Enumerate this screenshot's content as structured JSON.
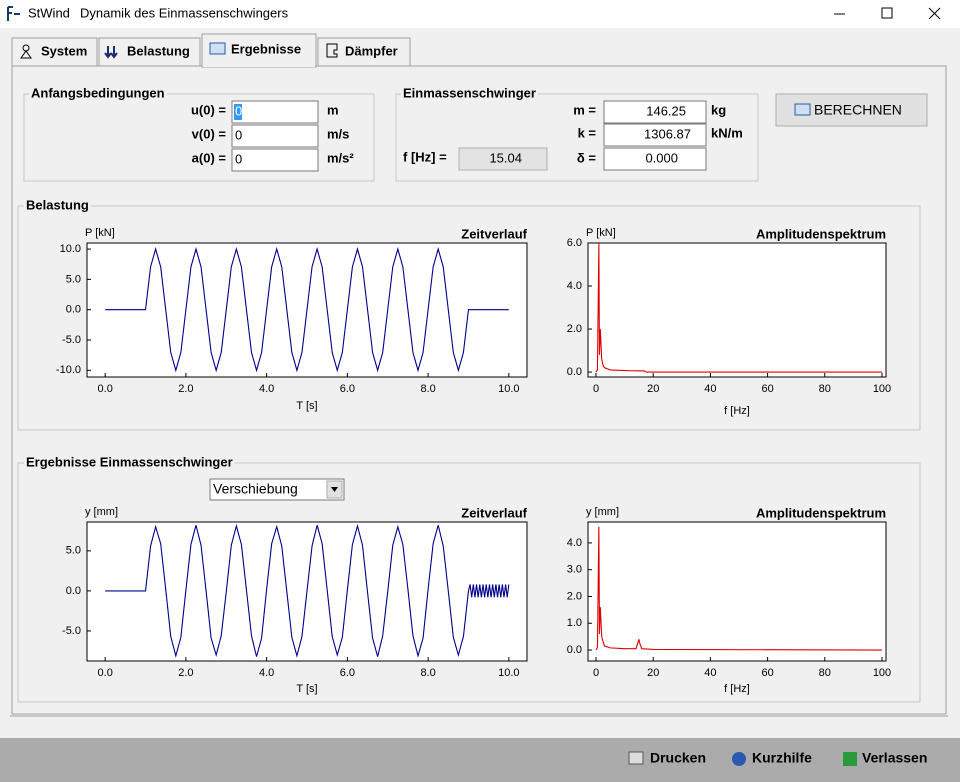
{
  "window": {
    "app": "StWind",
    "title": "Dynamik des Einmassenschwingers"
  },
  "tabs": [
    "System",
    "Belastung",
    "Ergebnisse",
    "Dämpfer"
  ],
  "initial_conditions": {
    "title": "Anfangsbedingungen",
    "rows": [
      {
        "label": "u(0) =",
        "value": "0",
        "unit": "m"
      },
      {
        "label": "v(0) =",
        "value": "0",
        "unit": "m/s"
      },
      {
        "label": "a(0) =",
        "value": "0",
        "unit": "m/s²"
      }
    ]
  },
  "oscillator": {
    "title": "Einmassenschwinger",
    "rows": [
      {
        "label": "m =",
        "value": "146.25",
        "unit": "kg"
      },
      {
        "label": "k =",
        "value": "1306.87",
        "unit": "kN/m"
      },
      {
        "label": "δ =",
        "value": "0.000"
      }
    ],
    "frequency": {
      "label": "f [Hz] =",
      "value": "15.04"
    }
  },
  "compute_button": "BERECHNEN",
  "load_group": "Belastung",
  "results_group": "Ergebnisse Einmassenschwinger",
  "result_select": "Verschiebung",
  "footer": [
    "Drucken",
    "Kurzhilfe",
    "Verlassen"
  ],
  "chart_data": [
    {
      "type": "line",
      "title": "Zeitverlauf",
      "x_label": "T [s]",
      "y_label": "P [kN]",
      "x": [
        0,
        1,
        1.125,
        1.25,
        1.375,
        1.5,
        1.625,
        1.75,
        1.875,
        2,
        2.125,
        2.25,
        2.375,
        2.5,
        2.625,
        2.75,
        2.875,
        3,
        3.125,
        3.25,
        3.375,
        3.5,
        3.625,
        3.75,
        3.875,
        4,
        4.125,
        4.25,
        4.375,
        4.5,
        4.625,
        4.75,
        4.875,
        5,
        5.125,
        5.25,
        5.375,
        5.5,
        5.625,
        5.75,
        5.875,
        6,
        6.125,
        6.25,
        6.375,
        6.5,
        6.625,
        6.75,
        6.875,
        7,
        7.125,
        7.25,
        7.375,
        7.5,
        7.625,
        7.75,
        7.875,
        8,
        8.125,
        8.25,
        8.375,
        8.5,
        8.625,
        8.75,
        8.875,
        9,
        10
      ],
      "series": [
        {
          "color": "#00008b",
          "values": [
            0,
            0,
            7.07,
            10,
            7.07,
            0,
            -7.07,
            -10,
            -7.07,
            0,
            7.07,
            10,
            7.07,
            0,
            -7.07,
            -10,
            -7.07,
            0,
            7.07,
            10,
            7.07,
            0,
            -7.07,
            -10,
            -7.07,
            0,
            7.07,
            10,
            7.07,
            0,
            -7.07,
            -10,
            -7.07,
            0,
            7.07,
            10,
            7.07,
            0,
            -7.07,
            -10,
            -7.07,
            0,
            7.07,
            10,
            7.07,
            0,
            -7.07,
            -10,
            -7.07,
            0,
            7.07,
            10,
            7.07,
            0,
            -7.07,
            -10,
            -7.07,
            0,
            7.07,
            10,
            7.07,
            0,
            -7.07,
            -10,
            -7.07,
            0,
            0
          ]
        }
      ],
      "xlim": [
        -0.45,
        10.45
      ],
      "ylim": [
        -11.1,
        11.0
      ],
      "xticks": [
        {
          "value": 0,
          "label": "0.0"
        },
        {
          "value": 2,
          "label": "2.0"
        },
        {
          "value": 4,
          "label": "4.0"
        },
        {
          "value": 6,
          "label": "6.0"
        },
        {
          "value": 8,
          "label": "8.0"
        },
        {
          "value": 10,
          "label": "10.0"
        }
      ],
      "yticks": [
        {
          "value": -10,
          "label": "-10.0"
        },
        {
          "value": -5,
          "label": "-5.0"
        },
        {
          "value": 0,
          "label": "0.0"
        },
        {
          "value": 5,
          "label": "5.0"
        },
        {
          "value": 10,
          "label": "10.0"
        }
      ]
    },
    {
      "type": "line",
      "title": "Amplitudenspektrum",
      "x_label": "f [Hz]",
      "y_label": "P [kN]",
      "x": [
        0,
        0.5,
        1,
        1.2,
        1.5,
        2,
        2.5,
        3,
        5,
        8,
        12,
        17,
        17.5,
        100
      ],
      "series": [
        {
          "color": "#e00000",
          "values": [
            0,
            0.1,
            6.0,
            0.8,
            2.0,
            0.6,
            0.3,
            0.2,
            0.1,
            0.08,
            0.06,
            0.05,
            0,
            0
          ]
        }
      ],
      "xlim": [
        -2.8,
        101.4
      ],
      "ylim": [
        -0.23,
        6.0
      ],
      "xticks": [
        0,
        20,
        40,
        60,
        80,
        100
      ],
      "yticks": [
        {
          "value": 0,
          "label": "0.0"
        },
        {
          "value": 2,
          "label": "2.0"
        },
        {
          "value": 4,
          "label": "4.0"
        },
        {
          "value": 6,
          "label": "6.0"
        }
      ]
    },
    {
      "type": "line",
      "title": "Zeitverlauf",
      "x_label": "T [s]",
      "y_label": "y [mm]",
      "x": [
        0,
        1,
        1.125,
        1.25,
        1.375,
        1.5,
        1.625,
        1.75,
        1.875,
        2,
        2.125,
        2.25,
        2.375,
        2.5,
        2.625,
        2.75,
        2.875,
        3,
        3.125,
        3.25,
        3.375,
        3.5,
        3.625,
        3.75,
        3.875,
        4,
        4.125,
        4.25,
        4.375,
        4.5,
        4.625,
        4.75,
        4.875,
        5,
        5.125,
        5.25,
        5.375,
        5.5,
        5.625,
        5.75,
        5.875,
        6,
        6.125,
        6.25,
        6.375,
        6.5,
        6.625,
        6.75,
        6.875,
        7,
        7.125,
        7.25,
        7.375,
        7.5,
        7.625,
        7.75,
        7.875,
        8,
        8.125,
        8.25,
        8.375,
        8.5,
        8.625,
        8.75,
        8.875,
        9,
        9.04,
        9.08,
        9.12,
        9.16,
        9.2,
        9.24,
        9.28,
        9.32,
        9.36,
        9.4,
        9.44,
        9.48,
        9.52,
        9.56,
        9.6,
        9.64,
        9.68,
        9.72,
        9.76,
        9.8,
        9.84,
        9.88,
        9.92,
        9.96,
        10
      ],
      "series": [
        {
          "color": "#00008b",
          "values": [
            0,
            0,
            5.6,
            8.0,
            5.9,
            0.2,
            -5.7,
            -8.1,
            -5.8,
            0.1,
            5.8,
            8.2,
            5.7,
            0,
            -5.9,
            -8.0,
            -5.6,
            -0.1,
            5.7,
            8.1,
            5.8,
            0.1,
            -5.6,
            -8.2,
            -5.9,
            0.2,
            5.9,
            8.0,
            5.6,
            -0.1,
            -5.8,
            -8.1,
            -5.7,
            0,
            5.6,
            8.2,
            5.9,
            0.1,
            -5.7,
            -8.0,
            -5.8,
            0.1,
            5.8,
            8.1,
            5.7,
            -0.2,
            -5.9,
            -8.2,
            -5.6,
            -0.1,
            5.7,
            8.0,
            5.8,
            0.2,
            -5.6,
            -8.1,
            -5.9,
            0.2,
            5.9,
            8.2,
            5.6,
            0,
            -5.8,
            -8.0,
            -5.7,
            0,
            0.8,
            -0.8,
            0.8,
            -0.8,
            0.8,
            -0.8,
            0.8,
            -0.8,
            0.8,
            -0.8,
            0.8,
            -0.8,
            0.8,
            -0.8,
            0.8,
            -0.8,
            0.8,
            -0.8,
            0.8,
            -0.8,
            0.8,
            -0.8,
            0.8,
            -0.8,
            0.8
          ]
        }
      ],
      "xlim": [
        -0.45,
        10.45
      ],
      "ylim": [
        -8.75,
        8.6
      ],
      "xticks": [
        {
          "value": 0,
          "label": "0.0"
        },
        {
          "value": 2,
          "label": "2.0"
        },
        {
          "value": 4,
          "label": "4.0"
        },
        {
          "value": 6,
          "label": "6.0"
        },
        {
          "value": 8,
          "label": "8.0"
        },
        {
          "value": 10,
          "label": "10.0"
        }
      ],
      "yticks": [
        {
          "value": -5,
          "label": "-5.0"
        },
        {
          "value": 0,
          "label": "0.0"
        },
        {
          "value": 5,
          "label": "5.0"
        }
      ]
    },
    {
      "type": "line",
      "title": "Amplitudenspektrum",
      "x_label": "f [Hz]",
      "y_label": "y [mm]",
      "x": [
        0,
        0.5,
        1,
        1.2,
        1.5,
        2,
        2.5,
        3,
        5,
        10,
        14,
        15,
        15.3,
        16,
        20,
        100
      ],
      "series": [
        {
          "color": "#e00000",
          "values": [
            0,
            0.1,
            4.6,
            0.6,
            1.6,
            0.5,
            0.3,
            0.15,
            0.08,
            0.05,
            0.05,
            0.4,
            0.25,
            0.05,
            0.02,
            0
          ]
        }
      ],
      "xlim": [
        -2.8,
        101.4
      ],
      "ylim": [
        -0.41,
        4.78
      ],
      "xticks": [
        0,
        20,
        40,
        60,
        80,
        100
      ],
      "yticks": [
        {
          "value": 0,
          "label": "0.0"
        },
        {
          "value": 1,
          "label": "1.0"
        },
        {
          "value": 2,
          "label": "2.0"
        },
        {
          "value": 3,
          "label": "3.0"
        },
        {
          "value": 4,
          "label": "4.0"
        }
      ]
    }
  ]
}
